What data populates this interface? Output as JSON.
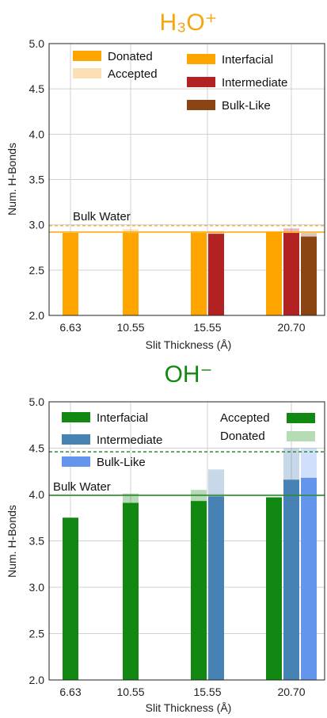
{
  "chart_data": [
    {
      "type": "bar",
      "title": "H₃O⁺",
      "title_color": "#f5a60d",
      "xlabel": "Slit Thickness (Å)",
      "ylabel": "Num. H-Bonds",
      "ylim": [
        2.0,
        5.0
      ],
      "yticks": [
        "2.0",
        "2.5",
        "3.0",
        "3.5",
        "4.0",
        "4.5",
        "5.0"
      ],
      "categories": [
        "6.63",
        "10.55",
        "15.55",
        "20.70"
      ],
      "grid": true,
      "region_legend": [
        {
          "name": "Interfacial",
          "color": "#ffa500"
        },
        {
          "name": "Intermediate",
          "color": "#b22222"
        },
        {
          "name": "Bulk-Like",
          "color": "#8b4513"
        }
      ],
      "hbond_legend": [
        {
          "name": "Donated",
          "color": "#ffa500"
        },
        {
          "name": "Accepted",
          "color": "#fbe0b5"
        }
      ],
      "series": [
        {
          "name": "Interfacial",
          "color": "#ffa500",
          "donated": [
            2.91,
            2.91,
            2.91,
            2.92
          ],
          "accepted": [
            2.9,
            2.95,
            2.93,
            2.93
          ]
        },
        {
          "name": "Intermediate",
          "color": "#b22222",
          "donated": [
            null,
            null,
            2.9,
            2.91
          ],
          "accepted": [
            null,
            null,
            2.93,
            2.96
          ]
        },
        {
          "name": "Bulk-Like",
          "color": "#8b4513",
          "donated": [
            null,
            null,
            null,
            2.87
          ],
          "accepted": [
            null,
            null,
            null,
            2.91
          ]
        }
      ],
      "reference_lines": [
        {
          "label": "Bulk Water",
          "value": 2.92,
          "style": "solid",
          "color": "#ffa500"
        },
        {
          "value": 2.99,
          "style": "dashed",
          "color": "#f5b347"
        }
      ],
      "annotation": "Bulk Water"
    },
    {
      "type": "bar",
      "title": "OH⁻",
      "title_color": "#118811",
      "xlabel": "Slit Thickness (Å)",
      "ylabel": "Num. H-Bonds",
      "ylim": [
        2.0,
        5.0
      ],
      "yticks": [
        "2.0",
        "2.5",
        "3.0",
        "3.5",
        "4.0",
        "4.5",
        "5.0"
      ],
      "categories": [
        "6.63",
        "10.55",
        "15.55",
        "20.70"
      ],
      "grid": true,
      "region_legend": [
        {
          "name": "Interfacial",
          "color": "#118811"
        },
        {
          "name": "Intermediate",
          "color": "#4682b4"
        },
        {
          "name": "Bulk-Like",
          "color": "#6495ed"
        }
      ],
      "hbond_legend": [
        {
          "name": "Accepted",
          "color": "#118811"
        },
        {
          "name": "Donated",
          "color": "#b5dcb5"
        }
      ],
      "series": [
        {
          "name": "Interfacial",
          "color": "#118811",
          "accepted": [
            3.75,
            3.91,
            3.93,
            3.97
          ],
          "donated": [
            3.75,
            4.01,
            4.05,
            3.97
          ]
        },
        {
          "name": "Intermediate",
          "color": "#4682b4",
          "accepted": [
            null,
            null,
            3.98,
            4.16
          ],
          "donated": [
            null,
            null,
            4.27,
            4.5
          ]
        },
        {
          "name": "Bulk-Like",
          "color": "#6495ed",
          "accepted": [
            null,
            null,
            null,
            4.18
          ],
          "donated": [
            null,
            null,
            null,
            4.5
          ]
        }
      ],
      "reference_lines": [
        {
          "label": "Bulk Water",
          "value": 3.99,
          "style": "solid",
          "color": "#2e8b2e"
        },
        {
          "value": 4.46,
          "style": "dashed",
          "color": "#2e8b2e"
        }
      ],
      "annotation": "Bulk Water"
    }
  ]
}
